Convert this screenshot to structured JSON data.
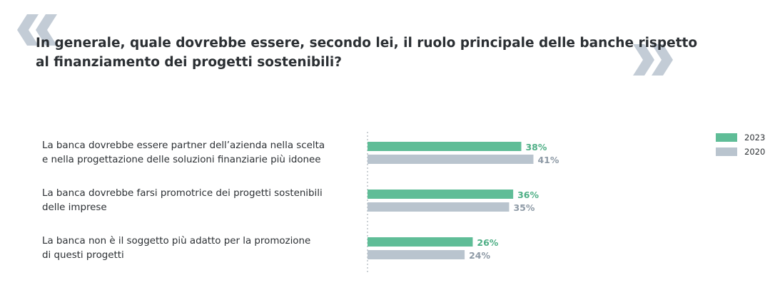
{
  "title_lines": [
    "In generale, quale dovrebbe essere, secondo lei, il ruolo principale delle banche rispetto",
    "al finanziamento dei progetti sostenibili?"
  ],
  "colors": {
    "series_2023": "#5fbd97",
    "series_2020": "#b9c4ce",
    "quote_marks": "#c3ccd6",
    "text": "#2b2f33"
  },
  "legend": {
    "position": "top-right",
    "items": [
      "2023",
      "2020"
    ]
  },
  "chart_data": {
    "type": "bar",
    "orientation": "horizontal",
    "categories": [
      [
        "La banca dovrebbe essere partner dell’azienda nella scelta",
        "e nella progettazione delle soluzioni finanziarie più idonee"
      ],
      [
        "La banca dovrebbe farsi promotrice dei progetti sostenibili",
        "delle imprese"
      ],
      [
        "La banca non è il soggetto più adatto per la promozione",
        "di questi progetti"
      ]
    ],
    "series": [
      {
        "name": "2023",
        "values": [
          38,
          36,
          26
        ],
        "labels": [
          "38%",
          "36%",
          "26%"
        ]
      },
      {
        "name": "2020",
        "values": [
          41,
          35,
          24
        ],
        "labels": [
          "41%",
          "35%",
          "24%"
        ]
      }
    ],
    "unit": "%",
    "xlim": [
      0,
      100
    ],
    "grid": false
  }
}
